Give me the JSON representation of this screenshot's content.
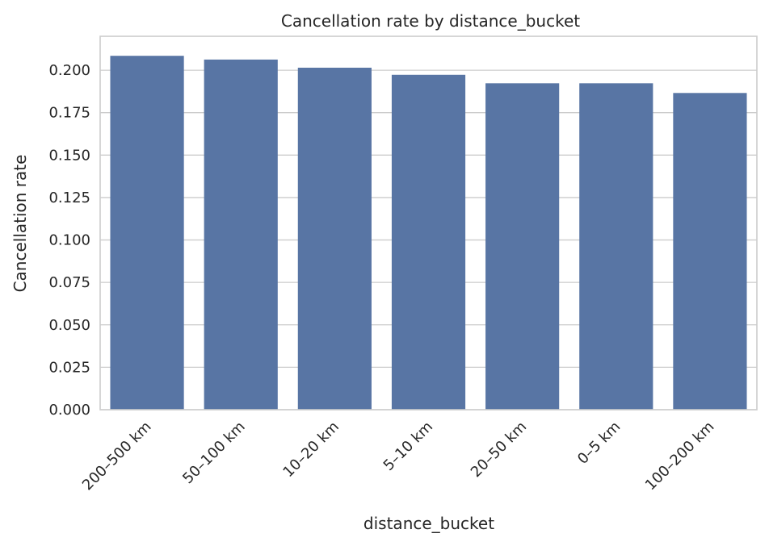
{
  "chart_data": {
    "type": "bar",
    "title": "Cancellation rate by distance_bucket",
    "xlabel": "distance_bucket",
    "ylabel": "Cancellation rate",
    "categories": [
      "200–500 km",
      "50–100 km",
      "10–20 km",
      "5–10 km",
      "20–50 km",
      "0–5 km",
      "100–200 km"
    ],
    "values": [
      0.2085,
      0.2063,
      0.2015,
      0.1973,
      0.1923,
      0.1923,
      0.1866
    ],
    "ylim": [
      0,
      0.22
    ],
    "yticks": [
      0.0,
      0.025,
      0.05,
      0.075,
      0.1,
      0.125,
      0.15,
      0.175,
      0.2
    ],
    "ytick_labels": [
      "0.000",
      "0.025",
      "0.050",
      "0.075",
      "0.100",
      "0.125",
      "0.150",
      "0.175",
      "0.200"
    ],
    "grid": true,
    "grid_axis": "y",
    "bar_color": "#5875a4"
  }
}
